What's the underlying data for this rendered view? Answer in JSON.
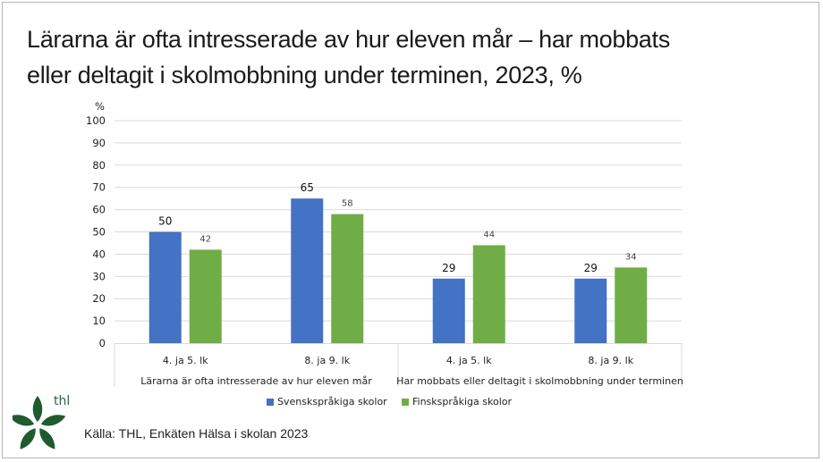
{
  "title_lines": [
    "Lärarna är ofta intresserade av hur eleven mår – har mobbats",
    "eller deltagit i skolmobbning under terminen, 2023, %"
  ],
  "source": "Källa: THL, Enkäten Hälsa i skolan 2023",
  "logo": {
    "text": "thl",
    "color": "#1e5b2e"
  },
  "chart_data": {
    "type": "bar",
    "title": "Lärarna är ofta intresserade av hur eleven mår – har mobbats eller deltagit i skolmobbning under terminen, 2023, %",
    "ylabel": "%",
    "xlabel": "",
    "ylim": [
      0,
      100
    ],
    "yticks": [
      0,
      10,
      20,
      30,
      40,
      50,
      60,
      70,
      80,
      90,
      100
    ],
    "grid": true,
    "legend_position": "bottom",
    "groups": [
      {
        "label": "Lärarna är ofta intresserade av hur eleven mår",
        "categories": [
          "4. ja 5. lk",
          "8. ja 9. lk"
        ]
      },
      {
        "label": "Har mobbats eller deltagit i skolmobbning under terminen",
        "categories": [
          "4. ja 5. lk",
          "8. ja 9. lk"
        ]
      }
    ],
    "categories": [
      "4. ja 5. lk",
      "8. ja 9. lk",
      "4. ja 5. lk",
      "8. ja 9. lk"
    ],
    "series": [
      {
        "name": "Svenskspråkiga skolor",
        "color": "#4472c4",
        "values": [
          50,
          65,
          29,
          29
        ]
      },
      {
        "name": "Finskspråkiga skolor",
        "color": "#70ad47",
        "values": [
          42,
          58,
          44,
          34
        ]
      }
    ]
  }
}
